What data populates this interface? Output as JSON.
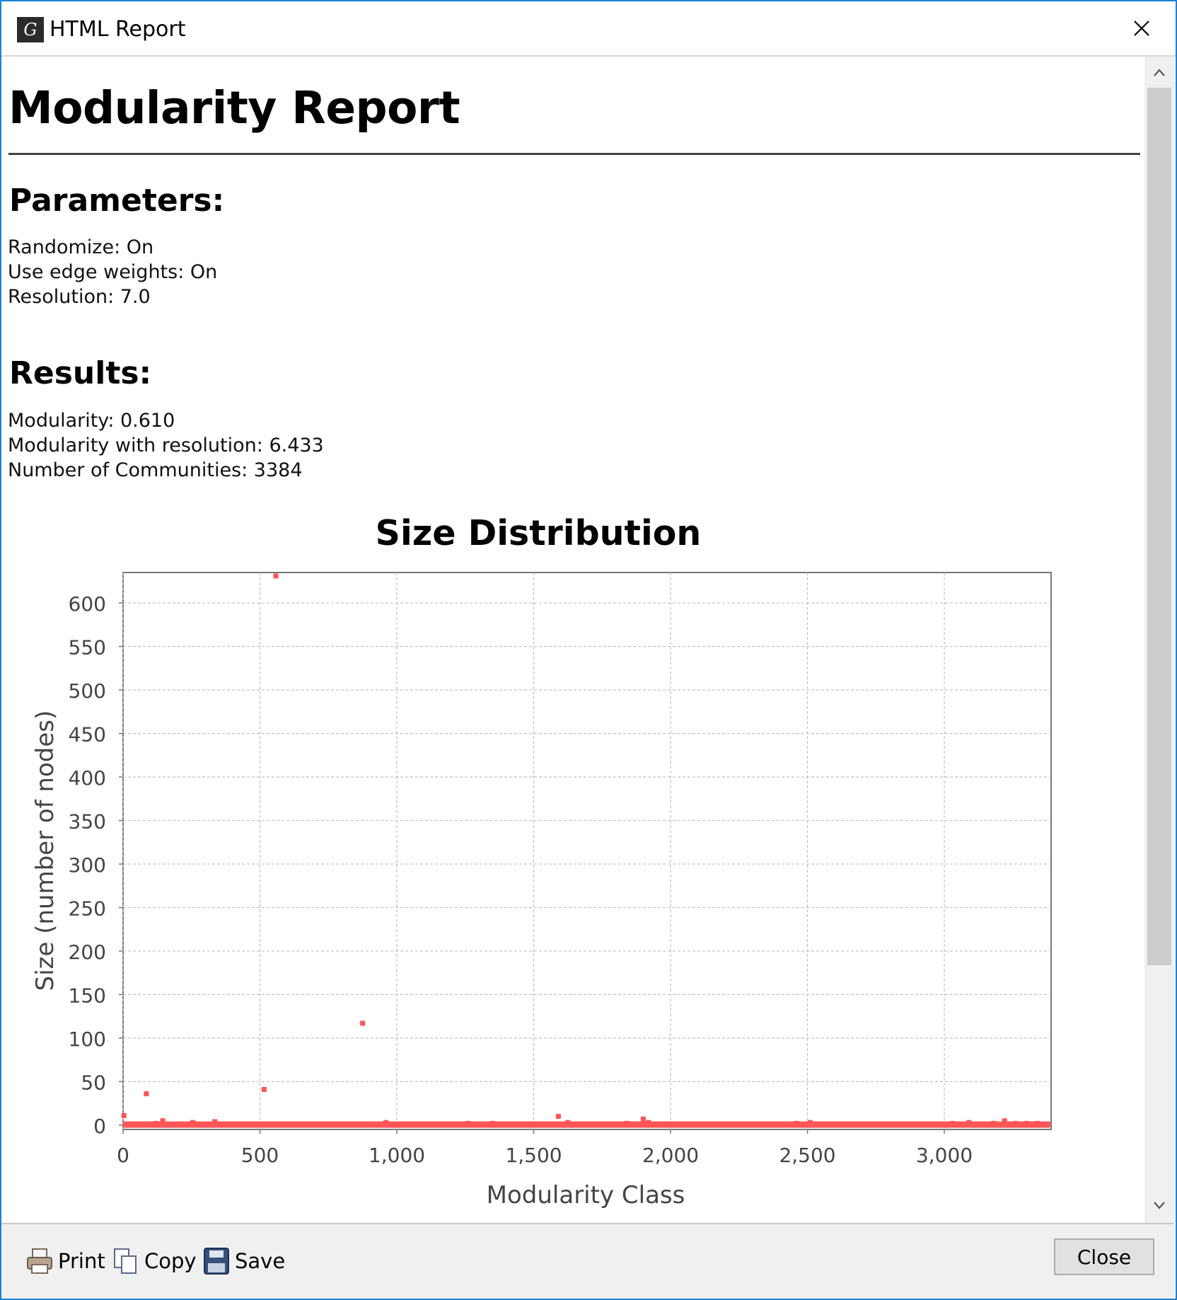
{
  "window": {
    "title": "HTML Report"
  },
  "report": {
    "title": "Modularity Report",
    "parameters_heading": "Parameters:",
    "parameters": [
      "Randomize: On",
      "Use edge weights: On",
      "Resolution: 7.0"
    ],
    "results_heading": "Results:",
    "results": [
      "Modularity: 0.610",
      "Modularity with resolution: 6.433",
      "Number of Communities: 3384"
    ]
  },
  "footer": {
    "print_label": "Print",
    "copy_label": "Copy",
    "save_label": "Save",
    "close_label": "Close"
  },
  "colors": {
    "series": "#ff5555",
    "grid": "#c0c0c0",
    "window_border": "#1883d7"
  },
  "chart_data": {
    "type": "scatter",
    "title": "Size Distribution",
    "xlabel": "Modularity Class",
    "ylabel": "Size (number of nodes)",
    "xlim": [
      0,
      3390
    ],
    "ylim": [
      -5,
      635
    ],
    "x_ticks": [
      0,
      500,
      1000,
      1500,
      2000,
      2500,
      3000
    ],
    "x_tick_labels": [
      "0",
      "500",
      "1,000",
      "1,500",
      "2,000",
      "2,500",
      "3,000"
    ],
    "y_ticks": [
      0,
      50,
      100,
      150,
      200,
      250,
      300,
      350,
      400,
      450,
      500,
      550,
      600
    ],
    "y_tick_labels": [
      "0",
      "50",
      "100",
      "150",
      "200",
      "250",
      "300",
      "350",
      "400",
      "450",
      "500",
      "550",
      "600"
    ],
    "grid": true,
    "series": [
      {
        "points": [
          [
            3,
            11
          ],
          [
            85,
            36
          ],
          [
            145,
            5
          ],
          [
            255,
            3
          ],
          [
            335,
            4
          ],
          [
            515,
            41
          ],
          [
            558,
            631
          ],
          [
            875,
            117
          ],
          [
            960,
            3
          ],
          [
            1260,
            2
          ],
          [
            1350,
            2
          ],
          [
            1590,
            10
          ],
          [
            1625,
            3
          ],
          [
            1840,
            2
          ],
          [
            1900,
            7
          ],
          [
            1920,
            3
          ],
          [
            2460,
            2
          ],
          [
            2510,
            3
          ],
          [
            3030,
            2
          ],
          [
            3090,
            3
          ],
          [
            3180,
            2
          ],
          [
            3220,
            5
          ],
          [
            3260,
            2
          ],
          [
            3300,
            2
          ],
          [
            3340,
            2
          ],
          [
            40,
            1
          ],
          [
            120,
            2
          ],
          [
            200,
            1
          ],
          [
            300,
            1
          ],
          [
            400,
            1
          ],
          [
            600,
            1
          ],
          [
            700,
            1
          ],
          [
            800,
            1
          ],
          [
            1100,
            1
          ],
          [
            1200,
            1
          ],
          [
            1400,
            1
          ],
          [
            1700,
            1
          ],
          [
            2000,
            1
          ],
          [
            2100,
            1
          ],
          [
            2200,
            1
          ],
          [
            2300,
            1
          ],
          [
            2400,
            1
          ],
          [
            2600,
            1
          ],
          [
            2700,
            1
          ],
          [
            2800,
            1
          ],
          [
            2900,
            1
          ],
          [
            3150,
            1
          ],
          [
            3380,
            1
          ]
        ],
        "baseline_range": [
          0,
          3384
        ],
        "baseline_values": [
          1,
          2
        ]
      }
    ]
  }
}
